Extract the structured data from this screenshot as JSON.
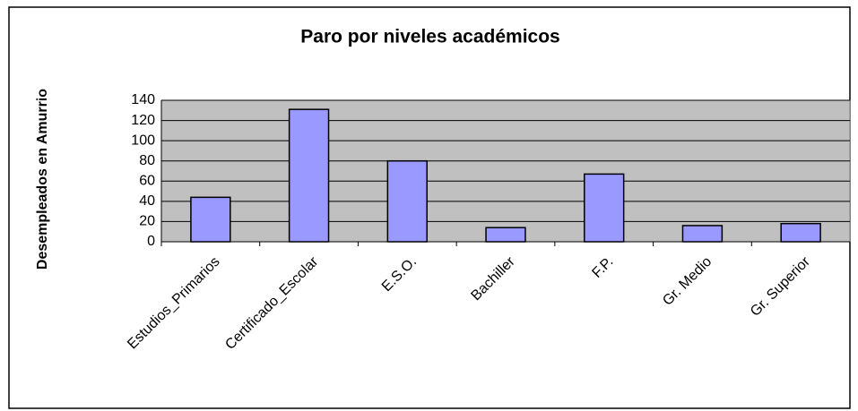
{
  "chart_data": {
    "type": "bar",
    "title": "Paro por niveles académicos",
    "y_label": "Desempleados en Amurrio",
    "categories": [
      "Estudios_Primarios",
      "Certificado_Escolar",
      "E.S.O.",
      "Bachiller",
      "F.P.",
      "Gr. Medio",
      "Gr. Superior"
    ],
    "values": [
      44,
      131,
      80,
      14,
      67,
      16,
      18
    ],
    "color": "#9999ff",
    "ylim": [
      0,
      140
    ],
    "yticks": [
      0,
      20,
      40,
      60,
      80,
      100,
      120,
      140
    ],
    "grid": true
  }
}
